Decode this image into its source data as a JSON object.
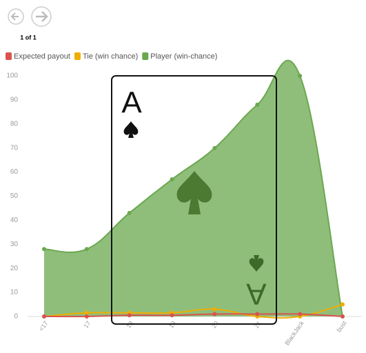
{
  "pager": "1 of 1",
  "card": {
    "rank": "A"
  },
  "chart_data": {
    "type": "area",
    "categories": [
      "<17",
      "17",
      "18",
      "19",
      "20",
      "21",
      "BlackJack",
      "bust"
    ],
    "series": [
      {
        "name": "Expected payout",
        "color": "#d9534f",
        "values": [
          0,
          0,
          0.5,
          0.5,
          1,
          1,
          1,
          0
        ]
      },
      {
        "name": "Tie (win chance)",
        "color": "#f0ad00",
        "values": [
          0,
          1.5,
          1.5,
          1.5,
          3,
          0,
          0,
          5
        ]
      },
      {
        "name": "Player (win-chance)",
        "color": "#6aa84f",
        "values": [
          28,
          28,
          43,
          57,
          70,
          88,
          100,
          0
        ]
      }
    ],
    "ylim": [
      0,
      100
    ],
    "yticks": [
      0,
      10,
      20,
      30,
      40,
      50,
      60,
      70,
      80,
      90,
      100
    ],
    "grid": false
  }
}
